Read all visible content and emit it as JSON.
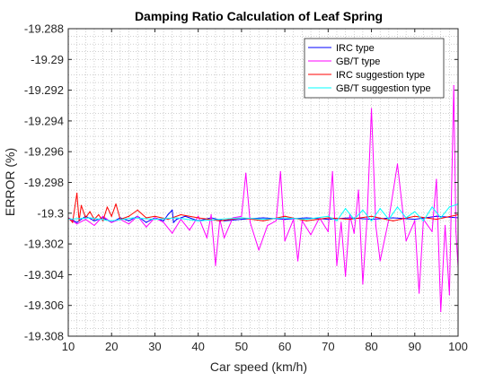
{
  "chart_data": {
    "type": "line",
    "title": "Damping Ratio Calculation of Leaf Spring",
    "xlabel": "Car speed (km/h)",
    "ylabel": "ERROR (%)",
    "xlim": [
      10,
      100
    ],
    "ylim": [
      -19.308,
      -19.288
    ],
    "x_ticks": [
      10,
      20,
      30,
      40,
      50,
      60,
      70,
      80,
      90,
      100
    ],
    "x_tick_labels": [
      "10",
      "20",
      "30",
      "40",
      "50",
      "60",
      "70",
      "80",
      "90",
      "100"
    ],
    "y_ticks": [
      -19.288,
      -19.29,
      -19.292,
      -19.294,
      -19.296,
      -19.298,
      -19.3,
      -19.302,
      -19.304,
      -19.306,
      -19.308
    ],
    "y_tick_labels": [
      "-19.288",
      "-19.29",
      "-19.292",
      "-19.294",
      "-19.296",
      "-19.298",
      "-19.3",
      "-19.302",
      "-19.304",
      "-19.306",
      "-19.308"
    ],
    "grid": "dotted, major and minor",
    "legend_position": "top-right",
    "series": [
      {
        "name": "IRC type",
        "color": "#0000ff",
        "x": [
          10,
          12,
          14,
          16,
          18,
          20,
          22,
          24,
          26,
          28,
          30,
          32,
          33,
          34,
          34.3,
          35,
          37,
          40,
          43,
          46,
          50,
          55,
          60,
          65,
          70,
          75,
          80,
          85,
          90,
          95,
          100
        ],
        "y": [
          -19.3003,
          -19.3006,
          -19.3002,
          -19.3005,
          -19.3003,
          -19.3006,
          -19.3003,
          -19.3005,
          -19.3002,
          -19.3006,
          -19.3003,
          -19.3005,
          -19.3001,
          -19.2998,
          -19.3006,
          -19.3004,
          -19.3002,
          -19.3005,
          -19.3003,
          -19.3005,
          -19.3004,
          -19.3003,
          -19.3004,
          -19.3003,
          -19.3004,
          -19.3003,
          -19.3004,
          -19.3003,
          -19.3004,
          -19.3002,
          -19.3003
        ]
      },
      {
        "name": "GB/T type",
        "color": "#ff00ff",
        "x": [
          10,
          12,
          14,
          16,
          18,
          20,
          22,
          24,
          26,
          28,
          30,
          32,
          34,
          36,
          38,
          40,
          42,
          43,
          44,
          45,
          46,
          48,
          50,
          51,
          52,
          54,
          56,
          58,
          59,
          60,
          62,
          63,
          64,
          66,
          68,
          70,
          71,
          72,
          73,
          74,
          75,
          76,
          77,
          78,
          79,
          80,
          81,
          82,
          84,
          86,
          88,
          90,
          91,
          92,
          94,
          95,
          96,
          97,
          98,
          99,
          99.5,
          100
        ],
        "y": [
          -19.3003,
          -19.3007,
          -19.3004,
          -19.3008,
          -19.3002,
          -19.3006,
          -19.3004,
          -19.3007,
          -19.3002,
          -19.3009,
          -19.3003,
          -19.3006,
          -19.3013,
          -19.3004,
          -19.3011,
          -19.3002,
          -19.3016,
          -19.3001,
          -19.3034,
          -19.3004,
          -19.3016,
          -19.3003,
          -19.3002,
          -19.2974,
          -19.3006,
          -19.3024,
          -19.3008,
          -19.3005,
          -19.2973,
          -19.3018,
          -19.3004,
          -19.3031,
          -19.3005,
          -19.3014,
          -19.3003,
          -19.3012,
          -19.2973,
          -19.3034,
          -19.3006,
          -19.3041,
          -19.3001,
          -19.3013,
          -19.2985,
          -19.3046,
          -19.3003,
          -19.2932,
          -19.3008,
          -19.3031,
          -19.3004,
          -19.2968,
          -19.3018,
          -19.3005,
          -19.3052,
          -19.3004,
          -19.3012,
          -19.2978,
          -19.3064,
          -19.3008,
          -19.3053,
          -19.2917,
          -19.3012,
          -19.3035
        ]
      },
      {
        "name": "IRC suggestion type",
        "color": "#ff0000",
        "x": [
          10,
          11,
          12,
          12.5,
          13,
          14,
          15,
          16,
          17,
          18,
          19,
          20,
          21,
          22,
          24,
          26,
          28,
          30,
          33,
          36,
          40,
          45,
          50,
          55,
          60,
          65,
          70,
          75,
          80,
          85,
          90,
          95,
          100
        ],
        "y": [
          -19.3003,
          -19.3006,
          -19.2987,
          -19.3005,
          -19.2995,
          -19.3003,
          -19.2999,
          -19.3004,
          -19.3001,
          -19.3005,
          -19.2996,
          -19.3002,
          -19.2994,
          -19.3004,
          -19.3002,
          -19.2998,
          -19.3003,
          -19.3002,
          -19.3004,
          -19.3001,
          -19.3003,
          -19.3005,
          -19.3003,
          -19.3005,
          -19.3002,
          -19.3005,
          -19.3003,
          -19.3004,
          -19.3002,
          -19.3005,
          -19.3002,
          -19.3004,
          -19.3001
        ]
      },
      {
        "name": "GB/T suggestion type",
        "color": "#00ffff",
        "x": [
          10,
          15,
          20,
          25,
          30,
          35,
          40,
          45,
          50,
          55,
          60,
          65,
          70,
          72,
          74,
          76,
          78,
          80,
          82,
          84,
          86,
          88,
          90,
          92,
          94,
          96,
          98,
          100
        ],
        "y": [
          -19.3004,
          -19.3003,
          -19.3005,
          -19.3003,
          -19.3004,
          -19.3003,
          -19.3005,
          -19.3004,
          -19.3003,
          -19.3004,
          -19.3003,
          -19.3004,
          -19.3002,
          -19.3005,
          -19.2997,
          -19.3004,
          -19.2998,
          -19.3005,
          -19.2997,
          -19.3004,
          -19.2996,
          -19.3003,
          -19.2999,
          -19.3005,
          -19.2996,
          -19.3003,
          -19.2996,
          -19.2994
        ]
      }
    ]
  }
}
